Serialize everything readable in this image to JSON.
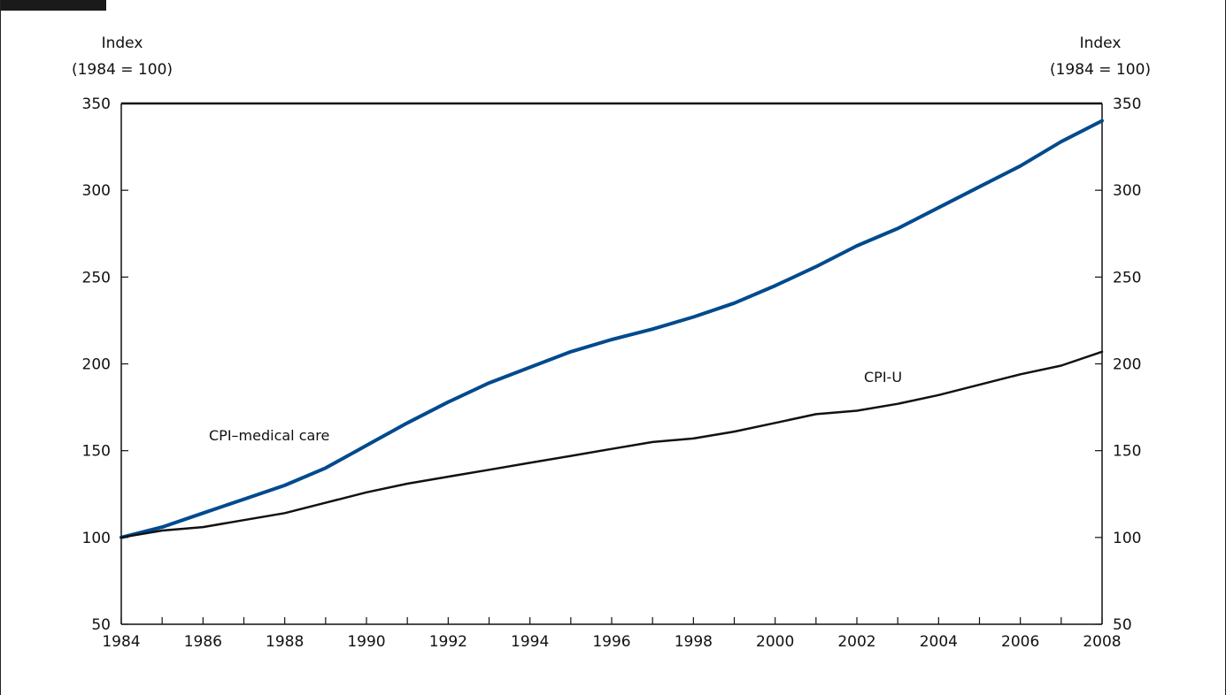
{
  "chart_data": {
    "type": "line",
    "title": "",
    "y_left_label": [
      "Index",
      "(1984 = 100)"
    ],
    "y_right_label": [
      "Index",
      "(1984 = 100)"
    ],
    "x": [
      1984,
      1985,
      1986,
      1987,
      1988,
      1989,
      1990,
      1991,
      1992,
      1993,
      1994,
      1995,
      1996,
      1997,
      1998,
      1999,
      2000,
      2001,
      2002,
      2003,
      2004,
      2005,
      2006,
      2007,
      2008
    ],
    "xticks": [
      "1984",
      "1986",
      "1988",
      "1990",
      "1992",
      "1994",
      "1996",
      "1998",
      "2000",
      "2002",
      "2004",
      "2006",
      "2008"
    ],
    "yticks": [
      "50",
      "100",
      "150",
      "200",
      "250",
      "300",
      "350"
    ],
    "xlim": [
      1984,
      2008
    ],
    "ylim": [
      50,
      350
    ],
    "grid": false,
    "series": [
      {
        "name": "CPI–medical care",
        "color": "#004a8d",
        "values": [
          100,
          106,
          114,
          122,
          130,
          140,
          153,
          166,
          178,
          189,
          198,
          207,
          214,
          220,
          227,
          235,
          245,
          256,
          268,
          278,
          290,
          302,
          314,
          328,
          340
        ]
      },
      {
        "name": "CPI-U",
        "color": "#111111",
        "values": [
          100,
          104,
          106,
          110,
          114,
          120,
          126,
          131,
          135,
          139,
          143,
          147,
          151,
          155,
          157,
          161,
          166,
          171,
          173,
          177,
          182,
          188,
          194,
          199,
          207
        ]
      }
    ]
  }
}
